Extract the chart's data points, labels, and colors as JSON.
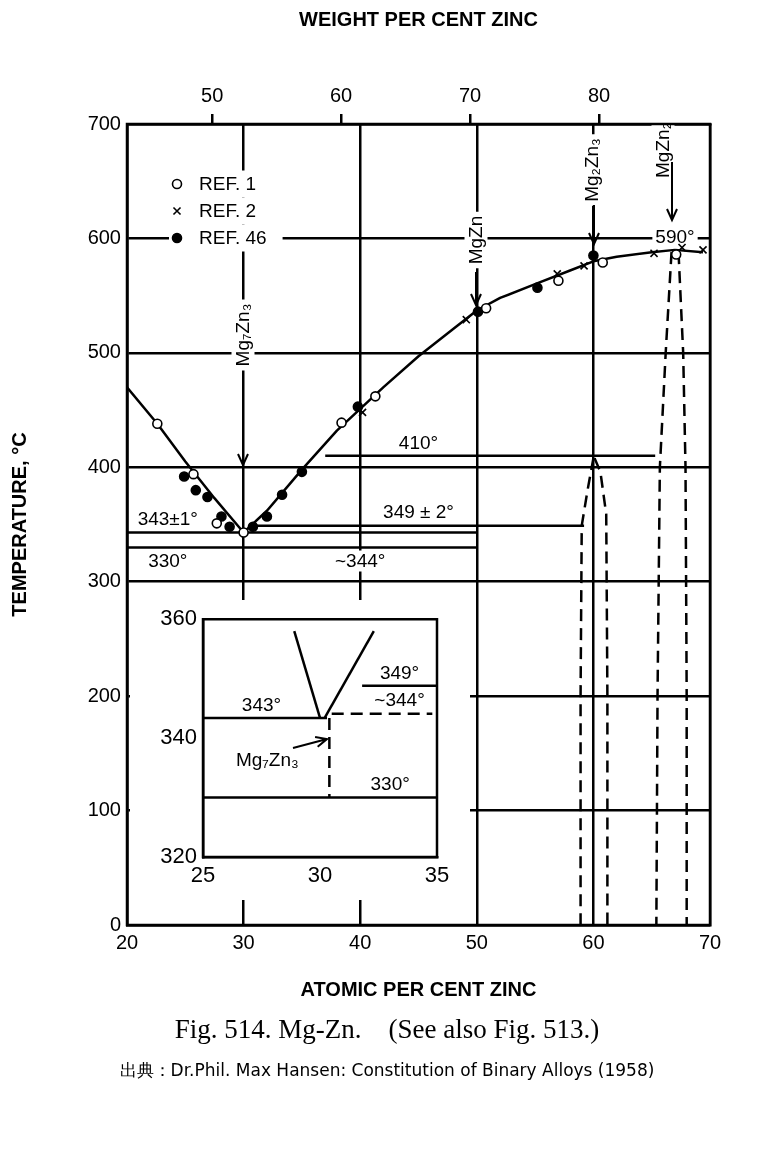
{
  "chart_data": [
    {
      "type": "line",
      "xlabel": "ATOMIC PER CENT ZINC",
      "ylabel": "TEMPERATURE, °C",
      "x2label": "WEIGHT PER CENT ZINC",
      "xlim": [
        20,
        70
      ],
      "xticks": [
        20,
        30,
        40,
        50,
        60,
        70
      ],
      "ylim": [
        0,
        700
      ],
      "yticks": [
        0,
        100,
        200,
        300,
        400,
        500,
        600,
        700
      ],
      "x2lim": [
        43.4,
        88.6
      ],
      "x2ticks": [
        50,
        60,
        70,
        80
      ],
      "grid": true,
      "legend": "top left",
      "series": [
        {
          "name": "REF. 1",
          "type": "scatter",
          "color": "#ffffff",
          "marker": "circle",
          "x": [
            22.6,
            25.7,
            27.7,
            30,
            38.4,
            41.3,
            50.8,
            57,
            60.8,
            67.1
          ],
          "values": [
            438,
            394,
            351,
            343,
            439,
            462,
            539,
            563,
            579,
            586
          ]
        },
        {
          "name": "REF. 2",
          "type": "scatter",
          "color": "#000000",
          "marker": "cross",
          "x": [
            40.2,
            49.1,
            56.9,
            59.2,
            65.2,
            67.6,
            69.4
          ],
          "values": [
            448,
            529,
            569,
            576,
            587,
            592,
            590
          ]
        },
        {
          "name": "REF. 46",
          "type": "scatter",
          "color": "#000000",
          "marker": "circle",
          "x": [
            24.9,
            25.9,
            26.9,
            28.1,
            28.8,
            30.8,
            32,
            33.3,
            35,
            39.8,
            50.1,
            55.2,
            60
          ],
          "values": [
            392,
            380,
            374,
            357,
            348,
            348,
            357,
            376,
            396,
            453,
            536,
            557,
            585
          ]
        },
        {
          "type": "line",
          "color": "#000000",
          "line_style": "solid",
          "x": [
            20,
            22.6,
            25,
            27.5,
            30
          ],
          "values": [
            470,
            438,
            405,
            373,
            343
          ]
        },
        {
          "type": "line",
          "color": "#000000",
          "line_style": "solid",
          "x": [
            30,
            32,
            35,
            38,
            40,
            42,
            45,
            48,
            50,
            52,
            55,
            58,
            60,
            62,
            65,
            67
          ],
          "values": [
            343,
            362,
            398,
            432,
            451,
            470,
            497,
            521,
            537,
            548,
            560,
            572,
            580,
            584,
            588,
            590
          ]
        },
        {
          "type": "line",
          "color": "#000000",
          "line_style": "solid",
          "x": [
            67,
            69.4
          ],
          "values": [
            590,
            588
          ]
        },
        {
          "type": "line",
          "color": "#000000",
          "line_style": "solid",
          "x": [
            37,
            65.3
          ],
          "values": [
            410,
            410
          ]
        },
        {
          "type": "line",
          "color": "#000000",
          "line_style": "solid",
          "x": [
            30.9,
            59.2
          ],
          "values": [
            349,
            349
          ]
        },
        {
          "type": "line",
          "color": "#000000",
          "line_style": "solid",
          "x": [
            20,
            50
          ],
          "values": [
            343,
            343
          ]
        },
        {
          "type": "line",
          "color": "#000000",
          "line_style": "solid",
          "x": [
            20,
            50
          ],
          "values": [
            330,
            330
          ]
        },
        {
          "type": "line",
          "color": "#000000",
          "line_style": "dashed",
          "x": [
            66.7,
            66.2,
            65.7,
            65.5,
            65.4
          ],
          "values": [
            588,
            500,
            400,
            200,
            0
          ]
        },
        {
          "type": "line",
          "color": "#000000",
          "line_style": "dashed",
          "x": [
            67.3,
            67.7,
            67.9,
            68,
            68
          ],
          "values": [
            588,
            500,
            400,
            200,
            0
          ]
        },
        {
          "type": "line",
          "color": "#000000",
          "line_style": "dashed",
          "x": [
            60,
            59.5,
            59,
            58.9,
            58.9
          ],
          "values": [
            408,
            380,
            349,
            200,
            0
          ]
        },
        {
          "type": "line",
          "color": "#000000",
          "line_style": "dashed",
          "x": [
            60.1,
            60.6,
            61.1,
            61.2,
            61.2
          ],
          "values": [
            408,
            396,
            359,
            200,
            0
          ]
        }
      ],
      "annotations": [
        "Mg₇Zn₃",
        "MgZn",
        "Mg₂Zn₃",
        "MgZn₂",
        {
          "text": "590°",
          "x": 67,
          "y": 590
        },
        {
          "text": "410°",
          "x": 45,
          "y": 410
        },
        {
          "text": "349 ± 2°",
          "x": 45,
          "y": 349
        },
        {
          "text": "343±1°",
          "x": 23.5,
          "y": 343
        },
        {
          "text": "330°",
          "x": 23.5,
          "y": 330
        },
        {
          "text": "~344°",
          "x": 40,
          "y": 343
        },
        "Fig. 514. Mg-Zn.    (See also Fig. 513.)",
        "出典：Dr.Phil. Max Hansen: Constitution of Binary Alloys (1958)"
      ]
    },
    {
      "type": "line",
      "xlim": [
        25,
        35
      ],
      "xticks": [
        25,
        30,
        35
      ],
      "ylim": [
        320,
        360
      ],
      "yticks": [
        320,
        340,
        360
      ],
      "series": [
        {
          "type": "line",
          "color": "#000000",
          "line_style": "solid",
          "x": [
            28.9,
            30
          ],
          "values": [
            358,
            343.4
          ]
        },
        {
          "type": "line",
          "color": "#000000",
          "line_style": "solid",
          "x": [
            30.2,
            32.3
          ],
          "values": [
            343.4,
            358
          ]
        },
        {
          "type": "line",
          "color": "#000000",
          "line_style": "solid",
          "x": [
            25,
            30.3
          ],
          "values": [
            343.4,
            343.4
          ]
        },
        {
          "type": "line",
          "color": "#000000",
          "line_style": "solid",
          "x": [
            25,
            35
          ],
          "values": [
            330,
            330
          ]
        },
        {
          "type": "line",
          "color": "#000000",
          "line_style": "solid",
          "x": [
            31.8,
            35
          ],
          "values": [
            348.8,
            348.8
          ]
        },
        {
          "type": "line",
          "color": "#000000",
          "line_style": "dashed",
          "x": [
            30.5,
            34.8
          ],
          "values": [
            344.1,
            344.1
          ]
        },
        {
          "type": "line",
          "color": "#000000",
          "line_style": "dashed",
          "x": [
            30.4,
            30.4
          ],
          "values": [
            343.4,
            330
          ]
        }
      ],
      "annotations": [
        {
          "text": "343°",
          "x": 27.5,
          "y": 343.4
        },
        {
          "text": "349°",
          "x": 33.4,
          "y": 348.8
        },
        {
          "text": "~344°",
          "x": 33.4,
          "y": 344.1
        },
        {
          "text": "330°",
          "x": 33,
          "y": 330
        },
        {
          "text": "Mg₇Zn₃",
          "x": 30.4,
          "y": 340
        }
      ]
    }
  ]
}
